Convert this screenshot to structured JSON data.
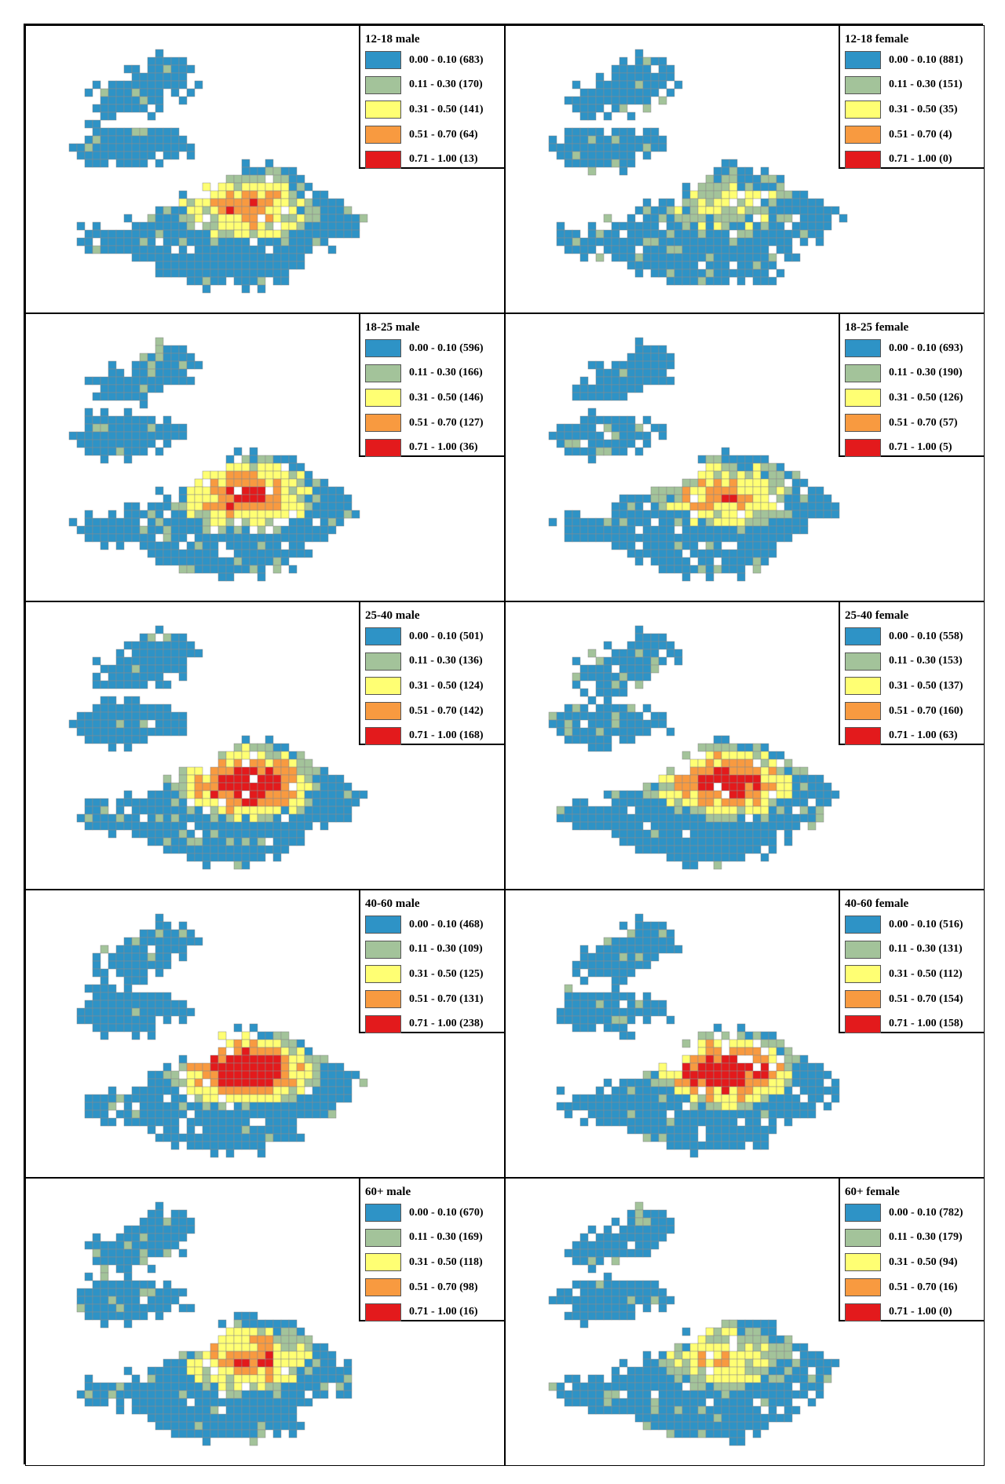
{
  "colors": {
    "c0": "#2e93c6",
    "c1": "#a3c39a",
    "c2": "#ffff73",
    "c3": "#f89a40",
    "c4": "#e31a1c",
    "cell_border": "#8a8a8a"
  },
  "panels": [
    {
      "title": "12-18 male",
      "intensity": 0.55,
      "classes": [
        {
          "range": "0.00 - 0.10",
          "count": "(683)"
        },
        {
          "range": "0.11 - 0.30",
          "count": "(170)"
        },
        {
          "range": "0.31 - 0.50",
          "count": "(141)"
        },
        {
          "range": "0.51 - 0.70",
          "count": "(64)"
        },
        {
          "range": "0.71 - 1.00",
          "count": "(13)"
        }
      ]
    },
    {
      "title": "12-18 female",
      "intensity": 0.3,
      "classes": [
        {
          "range": "0.00 - 0.10",
          "count": "(881)"
        },
        {
          "range": "0.11 - 0.30",
          "count": "(151)"
        },
        {
          "range": "0.31 - 0.50",
          "count": "(35)"
        },
        {
          "range": "0.51 - 0.70",
          "count": "(4)"
        },
        {
          "range": "0.71 - 1.00",
          "count": "(0)"
        }
      ]
    },
    {
      "title": "18-25 male",
      "intensity": 0.68,
      "classes": [
        {
          "range": "0.00 - 0.10",
          "count": "(596)"
        },
        {
          "range": "0.11 - 0.30",
          "count": "(166)"
        },
        {
          "range": "0.31 - 0.50",
          "count": "(146)"
        },
        {
          "range": "0.51 - 0.70",
          "count": "(127)"
        },
        {
          "range": "0.71 - 1.00",
          "count": "(36)"
        }
      ]
    },
    {
      "title": "18-25 female",
      "intensity": 0.55,
      "classes": [
        {
          "range": "0.00 - 0.10",
          "count": "(693)"
        },
        {
          "range": "0.11 - 0.30",
          "count": "(190)"
        },
        {
          "range": "0.31 - 0.50",
          "count": "(126)"
        },
        {
          "range": "0.51 - 0.70",
          "count": "(57)"
        },
        {
          "range": "0.71 - 1.00",
          "count": "(5)"
        }
      ]
    },
    {
      "title": "25-40 male",
      "intensity": 0.88,
      "classes": [
        {
          "range": "0.00 - 0.10",
          "count": "(501)"
        },
        {
          "range": "0.11 - 0.30",
          "count": "(136)"
        },
        {
          "range": "0.31 - 0.50",
          "count": "(124)"
        },
        {
          "range": "0.51 - 0.70",
          "count": "(142)"
        },
        {
          "range": "0.71 - 1.00",
          "count": "(168)"
        }
      ]
    },
    {
      "title": "25-40 female",
      "intensity": 0.78,
      "classes": [
        {
          "range": "0.00 - 0.10",
          "count": "(558)"
        },
        {
          "range": "0.11 - 0.30",
          "count": "(153)"
        },
        {
          "range": "0.31 - 0.50",
          "count": "(137)"
        },
        {
          "range": "0.51 - 0.70",
          "count": "(160)"
        },
        {
          "range": "0.71 - 1.00",
          "count": "(63)"
        }
      ]
    },
    {
      "title": "40-60 male",
      "intensity": 0.95,
      "classes": [
        {
          "range": "0.00 - 0.10",
          "count": "(468)"
        },
        {
          "range": "0.11 - 0.30",
          "count": "(109)"
        },
        {
          "range": "0.31 - 0.50",
          "count": "(125)"
        },
        {
          "range": "0.51 - 0.70",
          "count": "(131)"
        },
        {
          "range": "0.71 - 1.00",
          "count": "(238)"
        }
      ]
    },
    {
      "title": "40-60 female",
      "intensity": 0.88,
      "classes": [
        {
          "range": "0.00 - 0.10",
          "count": "(516)"
        },
        {
          "range": "0.11 - 0.30",
          "count": "(131)"
        },
        {
          "range": "0.31 - 0.50",
          "count": "(112)"
        },
        {
          "range": "0.51 - 0.70",
          "count": "(154)"
        },
        {
          "range": "0.71 - 1.00",
          "count": "(158)"
        }
      ]
    },
    {
      "title": "60+ male",
      "intensity": 0.6,
      "classes": [
        {
          "range": "0.00 - 0.10",
          "count": "(670)"
        },
        {
          "range": "0.11 - 0.30",
          "count": "(169)"
        },
        {
          "range": "0.31 - 0.50",
          "count": "(118)"
        },
        {
          "range": "0.51 - 0.70",
          "count": "(98)"
        },
        {
          "range": "0.71 - 1.00",
          "count": "(16)"
        }
      ]
    },
    {
      "title": "60+ female",
      "intensity": 0.42,
      "classes": [
        {
          "range": "0.00 - 0.10",
          "count": "(782)"
        },
        {
          "range": "0.11 - 0.30",
          "count": "(179)"
        },
        {
          "range": "0.31 - 0.50",
          "count": "(94)"
        },
        {
          "range": "0.51 - 0.70",
          "count": "(16)"
        },
        {
          "range": "0.71 - 1.00",
          "count": "(0)"
        }
      ]
    }
  ]
}
